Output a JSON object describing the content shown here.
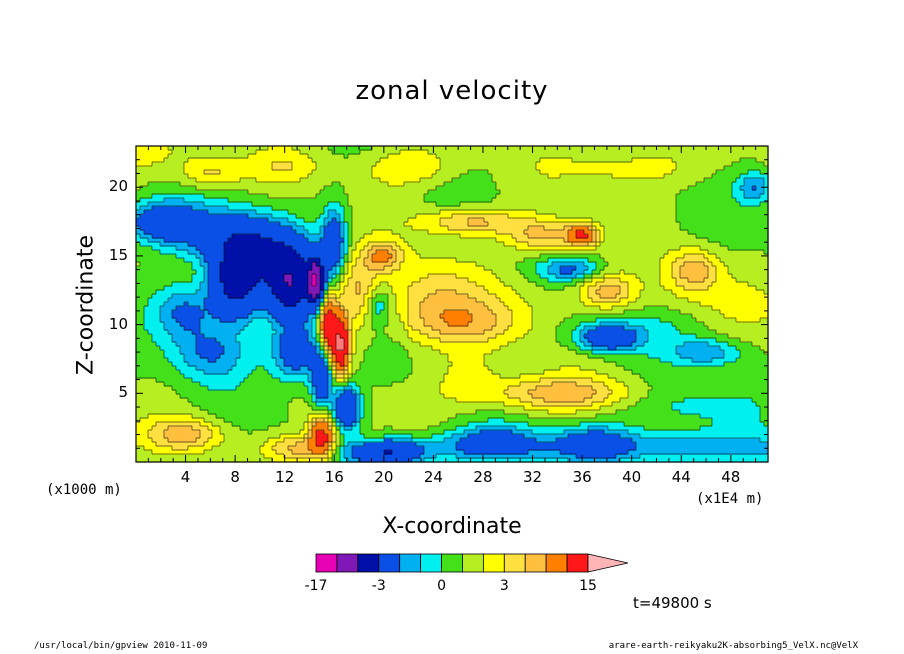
{
  "chart_data": {
    "type": "heatmap",
    "title": "zonal velocity",
    "xlabel": "X-coordinate",
    "ylabel": "Z-coordinate",
    "x_unit": "(x1E4 m)",
    "y_unit": "(x1000 m)",
    "xlim": [
      0,
      51
    ],
    "ylim": [
      0,
      23
    ],
    "x_ticks": [
      4,
      8,
      12,
      16,
      20,
      24,
      28,
      32,
      36,
      40,
      44,
      48
    ],
    "y_ticks": [
      5,
      10,
      15,
      20
    ],
    "time_label": "t=49800 s",
    "colorbar": {
      "levels": [
        -17,
        -11,
        -7,
        -3,
        -2,
        -1,
        0,
        1,
        2,
        3,
        4,
        6,
        10,
        15
      ],
      "colors": [
        "#e700b4",
        "#7f18b7",
        "#0010a8",
        "#0a4fe6",
        "#00b0f0",
        "#00f0f0",
        "#44e01a",
        "#b7ee22",
        "#ffff00",
        "#ffe040",
        "#ffc040",
        "#ff8000",
        "#ff1818",
        "#ff7a7a",
        "#ffb5b5"
      ],
      "labels": [
        {
          "text": "-17",
          "value": -17
        },
        {
          "text": "-3",
          "value": -3
        },
        {
          "text": "0",
          "value": 0
        },
        {
          "text": "3",
          "value": 3
        },
        {
          "text": "15",
          "value": 15
        }
      ]
    },
    "features": [
      {
        "x": 0,
        "z": 22.5,
        "u": 1.5,
        "sx": 5,
        "sz": 1.5
      },
      {
        "x": 6,
        "z": 21,
        "u": 2.5,
        "sx": 2.5,
        "sz": 1.2
      },
      {
        "x": 12,
        "z": 21.5,
        "u": 1.5,
        "sx": 3,
        "sz": 1.2
      },
      {
        "x": 22,
        "z": 21.5,
        "u": 2,
        "sx": 4,
        "sz": 1.5
      },
      {
        "x": 40,
        "z": 21.5,
        "u": 1.6,
        "sx": 6,
        "sz": 1.5
      },
      {
        "x": 2,
        "z": 17.5,
        "u": -5,
        "sx": 3,
        "sz": 1.5
      },
      {
        "x": 7,
        "z": 16.5,
        "u": -3.5,
        "sx": 4,
        "sz": 2
      },
      {
        "x": 8,
        "z": 13,
        "u": -9,
        "sx": 2,
        "sz": 2.5
      },
      {
        "x": 12.5,
        "z": 13,
        "u": -10,
        "sx": 2,
        "sz": 2.5
      },
      {
        "x": 14.5,
        "z": 13.2,
        "u": -14,
        "sx": 0.6,
        "sz": 1.5
      },
      {
        "x": 10,
        "z": 15.5,
        "u": -5,
        "sx": 3,
        "sz": 2
      },
      {
        "x": 4,
        "z": 11,
        "u": -3.5,
        "sx": 2.5,
        "sz": 2
      },
      {
        "x": 6,
        "z": 8,
        "u": -3,
        "sx": 3,
        "sz": 2
      },
      {
        "x": 13,
        "z": 8,
        "u": -5,
        "sx": 2,
        "sz": 2
      },
      {
        "x": 16,
        "z": 16,
        "u": -5,
        "sx": 1,
        "sz": 2.5
      },
      {
        "x": 15.5,
        "z": 10,
        "u": 8,
        "sx": 0.7,
        "sz": 2
      },
      {
        "x": 16.5,
        "z": 8.5,
        "u": 10,
        "sx": 0.7,
        "sz": 2
      },
      {
        "x": 15,
        "z": 6,
        "u": -6,
        "sx": 0.8,
        "sz": 2
      },
      {
        "x": 17,
        "z": 4,
        "u": -7,
        "sx": 1,
        "sz": 1.5
      },
      {
        "x": 15,
        "z": 2,
        "u": 7,
        "sx": 1,
        "sz": 1.5
      },
      {
        "x": 13,
        "z": 1,
        "u": 3.5,
        "sx": 2.5,
        "sz": 1
      },
      {
        "x": 18,
        "z": 12.5,
        "u": 3,
        "sx": 2,
        "sz": 2.5
      },
      {
        "x": 20,
        "z": 15,
        "u": 3.5,
        "sx": 1.5,
        "sz": 1
      },
      {
        "x": 19.5,
        "z": 11.5,
        "u": -3,
        "sx": 1,
        "sz": 1.5
      },
      {
        "x": 20,
        "z": 0.7,
        "u": -6,
        "sx": 3,
        "sz": 0.9
      },
      {
        "x": 29,
        "z": 1.5,
        "u": -3,
        "sx": 3.5,
        "sz": 1.2
      },
      {
        "x": 37,
        "z": 1.5,
        "u": -3,
        "sx": 3,
        "sz": 1.2
      },
      {
        "x": 44,
        "z": 1.2,
        "u": -1.5,
        "sx": 4,
        "sz": 1.2
      },
      {
        "x": 4,
        "z": 2,
        "u": 3.5,
        "sx": 3,
        "sz": 1.2
      },
      {
        "x": 27,
        "z": 17.5,
        "u": 3.5,
        "sx": 4,
        "sz": 1
      },
      {
        "x": 33,
        "z": 16.5,
        "u": 3.5,
        "sx": 3,
        "sz": 1.2
      },
      {
        "x": 36,
        "z": 16.5,
        "u": 5.5,
        "sx": 1.2,
        "sz": 0.8
      },
      {
        "x": 35,
        "z": 14,
        "u": -3,
        "sx": 2.5,
        "sz": 0.8
      },
      {
        "x": 38,
        "z": 12.5,
        "u": 3,
        "sx": 2,
        "sz": 1.2
      },
      {
        "x": 45,
        "z": 14,
        "u": 3.5,
        "sx": 2,
        "sz": 1.5
      },
      {
        "x": 40,
        "z": 10,
        "u": -1.5,
        "sx": 9,
        "sz": 1.5
      },
      {
        "x": 38,
        "z": 9,
        "u": -5,
        "sx": 2.5,
        "sz": 1
      },
      {
        "x": 46,
        "z": 8,
        "u": -3,
        "sx": 3,
        "sz": 1
      },
      {
        "x": 34,
        "z": 5,
        "u": 3.5,
        "sx": 6,
        "sz": 1.2
      },
      {
        "x": 27,
        "z": 6,
        "u": 1.5,
        "sx": 3,
        "sz": 2
      },
      {
        "x": 44,
        "z": 4,
        "u": -1.5,
        "sx": 5,
        "sz": 1.5
      },
      {
        "x": 50,
        "z": 20,
        "u": -3,
        "sx": 1.5,
        "sz": 1.2
      },
      {
        "x": 24,
        "z": 12,
        "u": 2,
        "sx": 4,
        "sz": 3
      },
      {
        "x": 27,
        "z": 10,
        "u": 2,
        "sx": 5,
        "sz": 1.5
      }
    ]
  },
  "footer": {
    "left": "/usr/local/bin/gpview  2010-11-09",
    "right": "arare-earth-reikyaku2K-absorbing5_VelX.nc@VelX"
  }
}
